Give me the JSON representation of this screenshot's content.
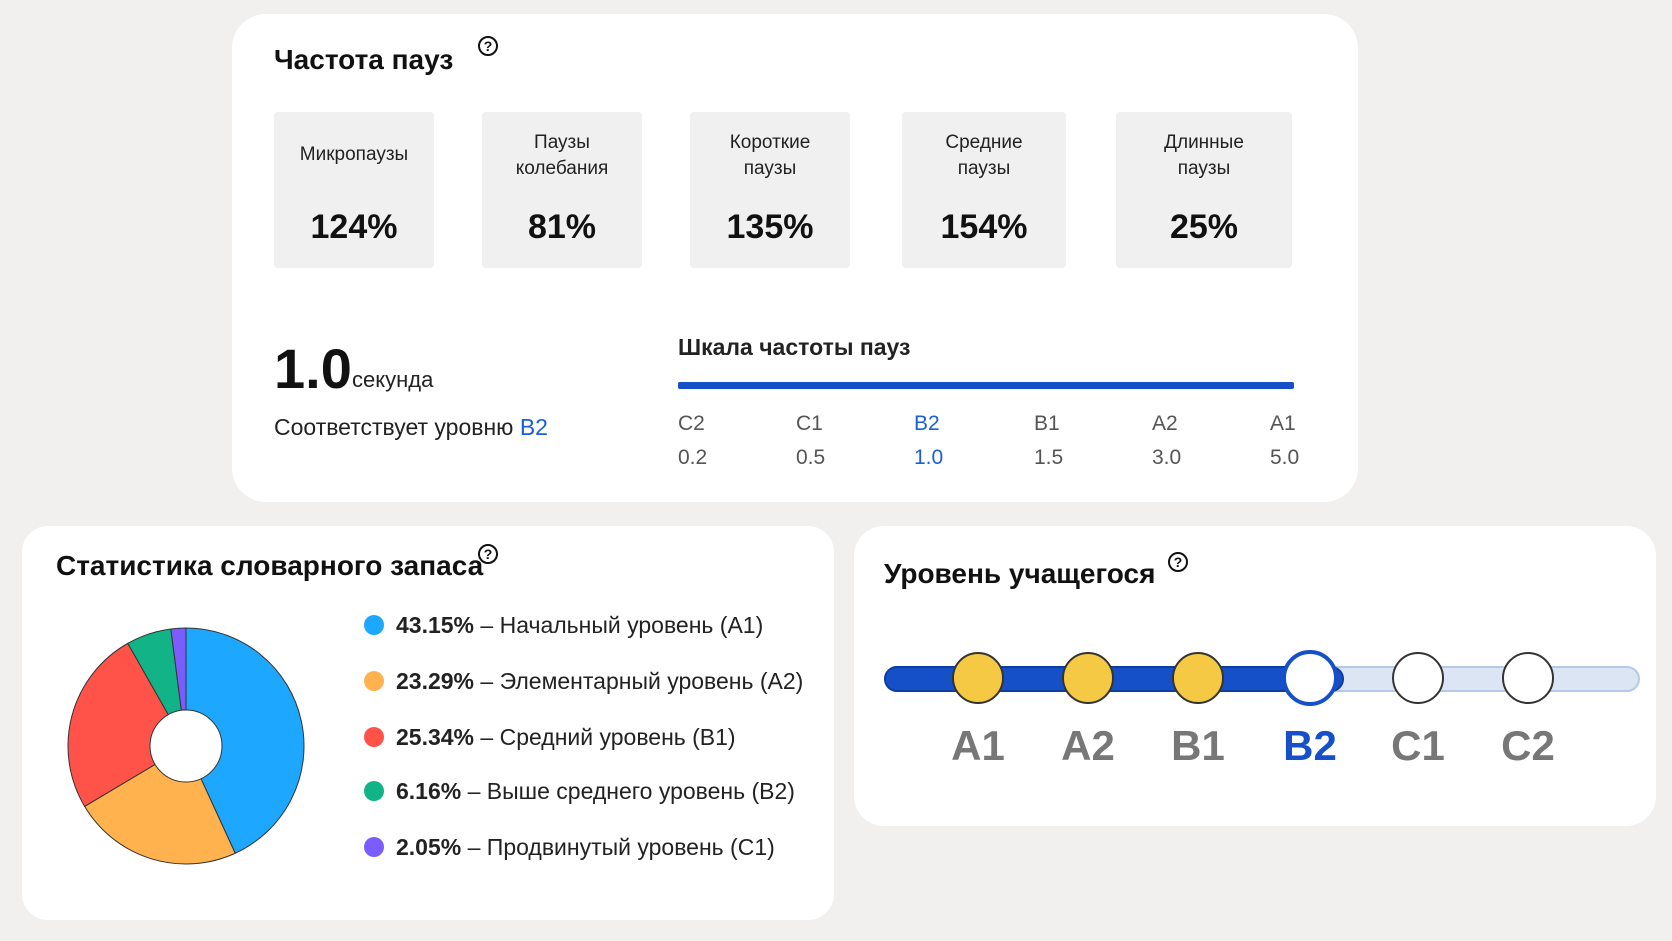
{
  "pause_card": {
    "title": "Частота пауз",
    "help_icon": "?",
    "tiles": [
      {
        "label": "Микропаузы",
        "value": "124%"
      },
      {
        "label": "Паузы\nколебания",
        "value": "81%"
      },
      {
        "label": "Короткие\nпаузы",
        "value": "135%"
      },
      {
        "label": "Средние\nпаузы",
        "value": "154%"
      },
      {
        "label": "Длинные\nпаузы",
        "value": "25%"
      }
    ],
    "big_value": "1.0",
    "big_unit": "секунда",
    "level_text": "Соответствует уровню",
    "level_value": "B2",
    "scale_title": "Шкала частоты пауз",
    "scale": [
      {
        "level": "C2",
        "value": "0.2"
      },
      {
        "level": "C1",
        "value": "0.5"
      },
      {
        "level": "B2",
        "value": "1.0",
        "active": true
      },
      {
        "level": "B1",
        "value": "1.5"
      },
      {
        "level": "A2",
        "value": "3.0"
      },
      {
        "level": "A1",
        "value": "5.0"
      }
    ],
    "accent_color": "#1a5fd9"
  },
  "vocab_card": {
    "title": "Статистика словарного запаса",
    "help_icon": "?",
    "legend": [
      {
        "pct": "43.15%",
        "sep": "–",
        "label": "Начальный уровень (A1)",
        "color": "#1ea7ff"
      },
      {
        "pct": "23.29%",
        "sep": "–",
        "label": "Элементарный уровень (A2)",
        "color": "#ffb24d"
      },
      {
        "pct": "25.34%",
        "sep": "–",
        "label": "Средний уровень (B1)",
        "color": "#ff534a"
      },
      {
        "pct": "6.16%",
        "sep": "–",
        "label": "Выше среднего уровень (B2)",
        "color": "#12b386"
      },
      {
        "pct": "2.05%",
        "sep": "–",
        "label": "Продвинутый уровень (C1)",
        "color": "#7b5cff"
      }
    ]
  },
  "chart_data": {
    "type": "pie",
    "categories": [
      "Начальный уровень (A1)",
      "Элементарный уровень (A2)",
      "Средний уровень (B1)",
      "Выше среднего уровень (B2)",
      "Продвинутый уровень (C1)"
    ],
    "values": [
      43.15,
      23.29,
      25.34,
      6.16,
      2.05
    ],
    "colors": [
      "#1ea7ff",
      "#ffb24d",
      "#ff534a",
      "#12b386",
      "#7b5cff"
    ],
    "donut": true
  },
  "level_card": {
    "title": "Уровень учащегося",
    "help_icon": "?",
    "levels": [
      {
        "label": "A1",
        "state": "done"
      },
      {
        "label": "A2",
        "state": "done"
      },
      {
        "label": "B1",
        "state": "done"
      },
      {
        "label": "B2",
        "state": "current"
      },
      {
        "label": "C1",
        "state": "todo"
      },
      {
        "label": "C2",
        "state": "todo"
      }
    ],
    "progress_color": "#1550c9",
    "done_color": "#f6c944"
  }
}
